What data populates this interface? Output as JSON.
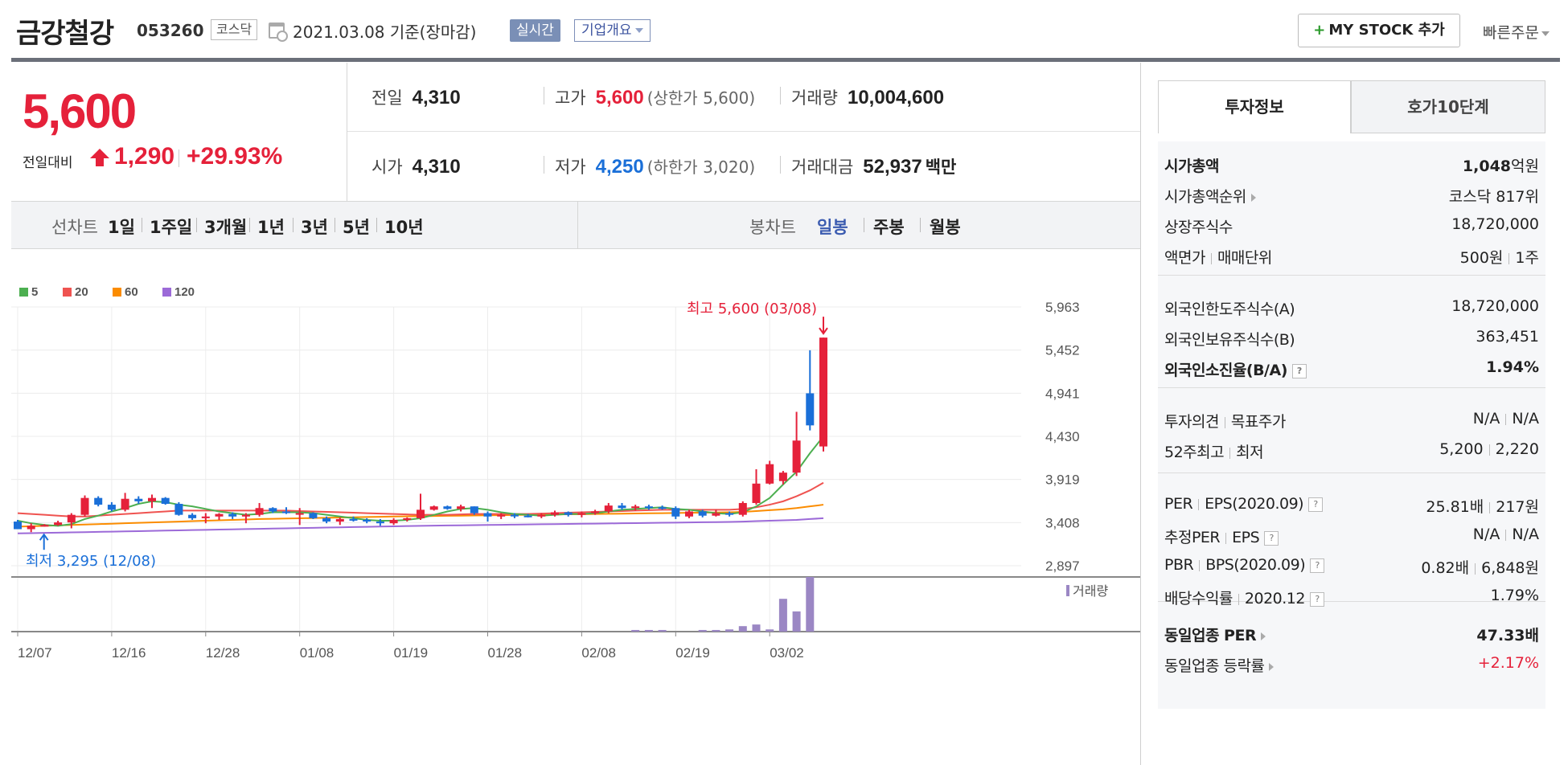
{
  "header": {
    "stock_name": "금강철강",
    "stock_code": "053260",
    "market": "코스닥",
    "base_date": "2021.03.08  기준(장마감)",
    "realtime_label": "실시간",
    "company_overview_label": "기업개요",
    "my_stock_label": "MY STOCK 추가",
    "quick_order_label": "빠른주문"
  },
  "quote": {
    "current_price": "5,600",
    "change_label": "전일대비",
    "change_value": "1,290",
    "change_pct": "+29.93%",
    "prev_close_label": "전일",
    "prev_close": "4,310",
    "high_label": "고가",
    "high": "5,600",
    "upper_limit": "(상한가 5,600)",
    "volume_label": "거래량",
    "volume": "10,004,600",
    "open_label": "시가",
    "open": "4,310",
    "low_label": "저가",
    "low": "4,250",
    "lower_limit": "(하한가 3,020)",
    "amount_label": "거래대금",
    "amount": "52,937",
    "amount_unit": "백만"
  },
  "period_bar": {
    "line_chart_label": "선차트",
    "line_periods": [
      "1일",
      "1주일",
      "3개월",
      "1년",
      "3년",
      "5년",
      "10년"
    ],
    "candle_chart_label": "봉차트",
    "candle_periods": [
      "일봉",
      "주봉",
      "월봉"
    ],
    "active_candle_period": "일봉"
  },
  "colors": {
    "up": "#e5213a",
    "down": "#1a6fd8",
    "ma5": "#4caf50",
    "ma20": "#ef5350",
    "ma60": "#fb8c00",
    "ma120": "#9c6ad8",
    "volume": "#9b87c4"
  },
  "chart_data": {
    "type": "candlestick",
    "legend": [
      "5",
      "20",
      "60",
      "120"
    ],
    "y_ticks": [
      5963,
      5452,
      4941,
      4430,
      3919,
      3408,
      2897
    ],
    "ylim": [
      2897,
      5963
    ],
    "x_tick_labels": [
      "12/07",
      "12/16",
      "12/28",
      "01/08",
      "01/19",
      "01/28",
      "02/08",
      "02/19",
      "03/02"
    ],
    "x_tick_indices": [
      0,
      7,
      14,
      21,
      28,
      35,
      42,
      49,
      56
    ],
    "high_annotation": "최고 5,600 (03/08)",
    "low_annotation": "최저 3,295 (12/08)",
    "volume_label": "거래량",
    "candles": [
      [
        3420,
        3440,
        3350,
        3330
      ],
      [
        3330,
        3400,
        3295,
        3370
      ],
      [
        3370,
        3390,
        3360,
        3380
      ],
      [
        3380,
        3430,
        3370,
        3410
      ],
      [
        3410,
        3520,
        3340,
        3500
      ],
      [
        3500,
        3730,
        3480,
        3700
      ],
      [
        3700,
        3720,
        3600,
        3620
      ],
      [
        3620,
        3650,
        3540,
        3560
      ],
      [
        3560,
        3760,
        3540,
        3690
      ],
      [
        3690,
        3720,
        3630,
        3660
      ],
      [
        3660,
        3740,
        3580,
        3700
      ],
      [
        3700,
        3710,
        3620,
        3630
      ],
      [
        3630,
        3650,
        3490,
        3500
      ],
      [
        3500,
        3520,
        3440,
        3460
      ],
      [
        3460,
        3520,
        3400,
        3480
      ],
      [
        3480,
        3520,
        3440,
        3510
      ],
      [
        3510,
        3530,
        3450,
        3480
      ],
      [
        3480,
        3520,
        3400,
        3500
      ],
      [
        3500,
        3640,
        3480,
        3580
      ],
      [
        3580,
        3590,
        3520,
        3540
      ],
      [
        3540,
        3590,
        3510,
        3520
      ],
      [
        3520,
        3580,
        3380,
        3520
      ],
      [
        3520,
        3530,
        3450,
        3460
      ],
      [
        3460,
        3480,
        3400,
        3420
      ],
      [
        3420,
        3470,
        3380,
        3450
      ],
      [
        3450,
        3480,
        3420,
        3440
      ],
      [
        3440,
        3460,
        3400,
        3420
      ],
      [
        3420,
        3450,
        3370,
        3400
      ],
      [
        3400,
        3460,
        3380,
        3440
      ],
      [
        3440,
        3470,
        3420,
        3460
      ],
      [
        3460,
        3750,
        3440,
        3560
      ],
      [
        3560,
        3610,
        3550,
        3600
      ],
      [
        3600,
        3610,
        3560,
        3570
      ],
      [
        3570,
        3620,
        3540,
        3600
      ],
      [
        3600,
        3600,
        3500,
        3520
      ],
      [
        3520,
        3540,
        3420,
        3480
      ],
      [
        3480,
        3520,
        3450,
        3500
      ],
      [
        3500,
        3520,
        3460,
        3490
      ],
      [
        3490,
        3510,
        3470,
        3480
      ],
      [
        3480,
        3520,
        3460,
        3500
      ],
      [
        3500,
        3550,
        3480,
        3530
      ],
      [
        3530,
        3540,
        3480,
        3500
      ],
      [
        3500,
        3540,
        3470,
        3520
      ],
      [
        3520,
        3560,
        3500,
        3540
      ],
      [
        3540,
        3640,
        3520,
        3610
      ],
      [
        3610,
        3640,
        3560,
        3580
      ],
      [
        3580,
        3620,
        3550,
        3600
      ],
      [
        3600,
        3620,
        3560,
        3590
      ],
      [
        3590,
        3610,
        3560,
        3580
      ],
      [
        3580,
        3600,
        3450,
        3480
      ],
      [
        3480,
        3560,
        3460,
        3540
      ],
      [
        3540,
        3560,
        3470,
        3490
      ],
      [
        3490,
        3560,
        3480,
        3520
      ],
      [
        3520,
        3540,
        3480,
        3500
      ],
      [
        3500,
        3660,
        3480,
        3640
      ],
      [
        3640,
        4040,
        3620,
        3870
      ],
      [
        3870,
        4140,
        3860,
        4100
      ],
      [
        3900,
        4020,
        3860,
        4000
      ],
      [
        4000,
        4720,
        3960,
        4380
      ],
      [
        4940,
        5450,
        4500,
        4560
      ],
      [
        4310,
        5600,
        4250,
        5600
      ]
    ],
    "ma5": [
      3430,
      3400,
      3380,
      3370,
      3390,
      3450,
      3490,
      3540,
      3580,
      3630,
      3660,
      3650,
      3620,
      3600,
      3570,
      3540,
      3520,
      3500,
      3510,
      3530,
      3530,
      3530,
      3520,
      3500,
      3480,
      3460,
      3440,
      3430,
      3430,
      3440,
      3460,
      3500,
      3540,
      3570,
      3580,
      3560,
      3530,
      3510,
      3500,
      3490,
      3500,
      3510,
      3510,
      3520,
      3540,
      3560,
      3570,
      3580,
      3590,
      3570,
      3560,
      3540,
      3520,
      3510,
      3530,
      3600,
      3700,
      3860,
      4010,
      4230,
      4430
    ],
    "ma20": [
      3520,
      3510,
      3500,
      3490,
      3480,
      3480,
      3490,
      3500,
      3510,
      3520,
      3530,
      3540,
      3550,
      3550,
      3550,
      3550,
      3550,
      3550,
      3550,
      3550,
      3550,
      3545,
      3540,
      3535,
      3530,
      3525,
      3520,
      3515,
      3510,
      3505,
      3500,
      3500,
      3500,
      3505,
      3510,
      3510,
      3510,
      3510,
      3510,
      3515,
      3520,
      3525,
      3530,
      3535,
      3540,
      3545,
      3550,
      3555,
      3560,
      3560,
      3560,
      3560,
      3560,
      3560,
      3570,
      3590,
      3620,
      3660,
      3720,
      3790,
      3880
    ],
    "ma60": [
      3360,
      3365,
      3370,
      3375,
      3380,
      3385,
      3390,
      3395,
      3400,
      3405,
      3410,
      3415,
      3420,
      3425,
      3430,
      3435,
      3440,
      3445,
      3450,
      3453,
      3456,
      3459,
      3462,
      3465,
      3468,
      3471,
      3474,
      3477,
      3480,
      3482,
      3484,
      3486,
      3488,
      3490,
      3492,
      3494,
      3496,
      3498,
      3500,
      3502,
      3504,
      3506,
      3508,
      3510,
      3512,
      3514,
      3516,
      3518,
      3520,
      3522,
      3524,
      3526,
      3528,
      3530,
      3535,
      3545,
      3555,
      3565,
      3580,
      3600,
      3620
    ],
    "ma120": [
      3280,
      3283,
      3286,
      3289,
      3292,
      3295,
      3298,
      3301,
      3304,
      3307,
      3310,
      3313,
      3316,
      3319,
      3322,
      3325,
      3328,
      3331,
      3334,
      3337,
      3340,
      3343,
      3346,
      3349,
      3352,
      3355,
      3358,
      3361,
      3364,
      3367,
      3370,
      3372,
      3374,
      3376,
      3378,
      3380,
      3382,
      3384,
      3386,
      3388,
      3390,
      3392,
      3394,
      3396,
      3398,
      3400,
      3402,
      3404,
      3406,
      3408,
      3410,
      3412,
      3414,
      3416,
      3420,
      3425,
      3430,
      3435,
      3440,
      3450,
      3460
    ],
    "volume": [
      0,
      0,
      0,
      0,
      0,
      0,
      0,
      0,
      0,
      0,
      0,
      0,
      0,
      0,
      0,
      0,
      0,
      0,
      0,
      0,
      0,
      0,
      0,
      0,
      0,
      0,
      0,
      0,
      0,
      0,
      0,
      0,
      0,
      0,
      0,
      0,
      0,
      0,
      0,
      0,
      0,
      0,
      0,
      0,
      0,
      0,
      0.03,
      0.03,
      0.03,
      0,
      0,
      0.03,
      0.03,
      0.04,
      0.1,
      0.13,
      0.04,
      0.6,
      0.37,
      1.0,
      0
    ]
  },
  "invest_tabs": {
    "active": "투자정보",
    "inactive": "호가10단계"
  },
  "invest_info": {
    "group1": [
      {
        "k": "시가총액",
        "v": "1,048",
        "unit": "억원",
        "kbold": true,
        "vbold": true
      },
      {
        "k": "시가총액순위",
        "v": "코스닥 817위",
        "arrow": true
      },
      {
        "k": "상장주식수",
        "v": "18,720,000"
      },
      {
        "k": "액면가",
        "k2": "매매단위",
        "v": "500원",
        "v2": "1주"
      }
    ],
    "group2": [
      {
        "k": "외국인한도주식수(A)",
        "v": "18,720,000"
      },
      {
        "k": "외국인보유주식수(B)",
        "v": "363,451"
      },
      {
        "k": "외국인소진율(B/A)",
        "v": "1.94%",
        "kbold": true,
        "vbold": true,
        "help": true
      }
    ],
    "group3": [
      {
        "k": "투자의견",
        "k2": "목표주가",
        "v": "N/A",
        "v2": "N/A"
      },
      {
        "k": "52주최고",
        "k2": "최저",
        "v": "5,200",
        "v2": "2,220"
      }
    ],
    "group4": [
      {
        "k": "PER",
        "k2": "EPS(2020.09)",
        "v": "25.81배",
        "v2": "217원",
        "help": true
      },
      {
        "k": "추정PER",
        "k2": "EPS",
        "v": "N/A",
        "v2": "N/A",
        "help": true
      },
      {
        "k": "PBR",
        "k2": "BPS(2020.09)",
        "v": "0.82배",
        "v2": "6,848원",
        "help": true
      },
      {
        "k": "배당수익률",
        "k2": "2020.12",
        "v": "1.79%",
        "help": true
      }
    ],
    "group5": [
      {
        "k": "동일업종 PER",
        "v": "47.33배",
        "kbold": true,
        "vbold": true,
        "arrow": true
      },
      {
        "k": "동일업종 등락률",
        "v": "+2.17%",
        "vred": true,
        "arrow": true
      }
    ]
  }
}
